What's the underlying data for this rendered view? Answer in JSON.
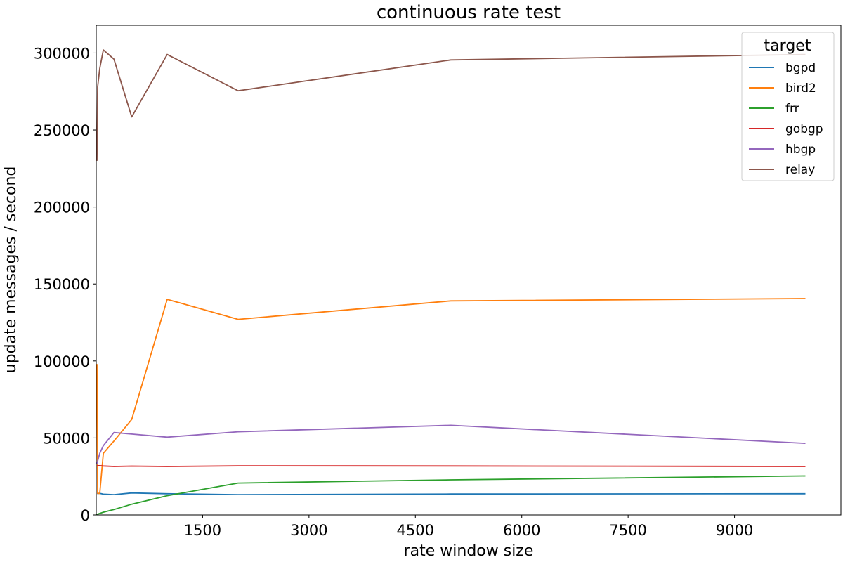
{
  "chart_data": {
    "type": "line",
    "title": "continuous rate test",
    "xlabel": "rate window size",
    "ylabel": "update messages / second",
    "xlim": [
      0,
      10500
    ],
    "ylim": [
      0,
      318000
    ],
    "xticks": [
      1500,
      3000,
      4500,
      6000,
      7500,
      9000
    ],
    "yticks": [
      0,
      50000,
      100000,
      150000,
      200000,
      250000,
      300000
    ],
    "grid": false,
    "legend": {
      "title": "target",
      "placement": "top-right"
    },
    "series": [
      {
        "name": "bgpd",
        "color": "#1f77b4",
        "x": [
          10,
          20,
          50,
          100,
          250,
          500,
          1000,
          2000,
          5000,
          10000
        ],
        "y": [
          14000,
          14000,
          14000,
          13500,
          13200,
          14300,
          13800,
          13200,
          13600,
          13800
        ]
      },
      {
        "name": "bird2",
        "color": "#ff7f0e",
        "x": [
          10,
          20,
          50,
          100,
          250,
          500,
          1000,
          2000,
          5000,
          10000
        ],
        "y": [
          98000,
          14000,
          14000,
          40000,
          48000,
          62000,
          140000,
          127000,
          139000,
          140500
        ]
      },
      {
        "name": "frr",
        "color": "#2ca02c",
        "x": [
          10,
          20,
          50,
          100,
          250,
          500,
          1000,
          2000,
          5000,
          10000
        ],
        "y": [
          0,
          500,
          1000,
          1800,
          3500,
          7000,
          12500,
          20700,
          22800,
          25300
        ]
      },
      {
        "name": "gobgp",
        "color": "#d62728",
        "x": [
          10,
          20,
          50,
          100,
          250,
          500,
          1000,
          2000,
          5000,
          10000
        ],
        "y": [
          32000,
          32000,
          32000,
          31800,
          31500,
          31700,
          31500,
          31900,
          31800,
          31500
        ]
      },
      {
        "name": "hbgp",
        "color": "#9467bd",
        "x": [
          10,
          20,
          50,
          100,
          250,
          500,
          1000,
          2000,
          5000,
          10000
        ],
        "y": [
          33000,
          35000,
          40000,
          45000,
          53500,
          52500,
          50500,
          54000,
          58200,
          46500
        ]
      },
      {
        "name": "relay",
        "color": "#8c564b",
        "x": [
          10,
          20,
          50,
          100,
          250,
          500,
          1000,
          2000,
          5000,
          10000
        ],
        "y": [
          230000,
          278000,
          290000,
          302000,
          296000,
          258500,
          299000,
          275500,
          295500,
          299000
        ]
      }
    ]
  }
}
